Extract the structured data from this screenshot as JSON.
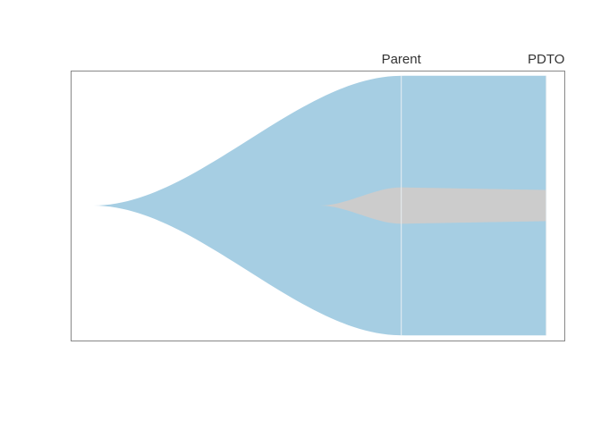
{
  "chart_data": {
    "type": "area",
    "title": "",
    "xlabel": "",
    "ylabel": "",
    "samples": [
      {
        "name": "Parent",
        "x": 0.68
      },
      {
        "name": "PDTO",
        "x": 1.0
      }
    ],
    "xlim": [
      -0.05,
      1.04
    ],
    "ylim": [
      0,
      1.04
    ],
    "clones": [
      {
        "id": "clone-1",
        "color": "#a6cee3",
        "fraction": {
          "Parent": 1.0,
          "PDTO": 1.0
        },
        "emerges_at": 0.0,
        "parent": null
      },
      {
        "id": "clone-2",
        "color": "#cccccc",
        "fraction": {
          "Parent": 0.14,
          "PDTO": 0.12
        },
        "emerges_at": 0.5,
        "parent": "clone-1"
      }
    ],
    "colors": {
      "frame": "#888888",
      "sample_line": "#e8eef2",
      "background": "#ffffff"
    }
  }
}
